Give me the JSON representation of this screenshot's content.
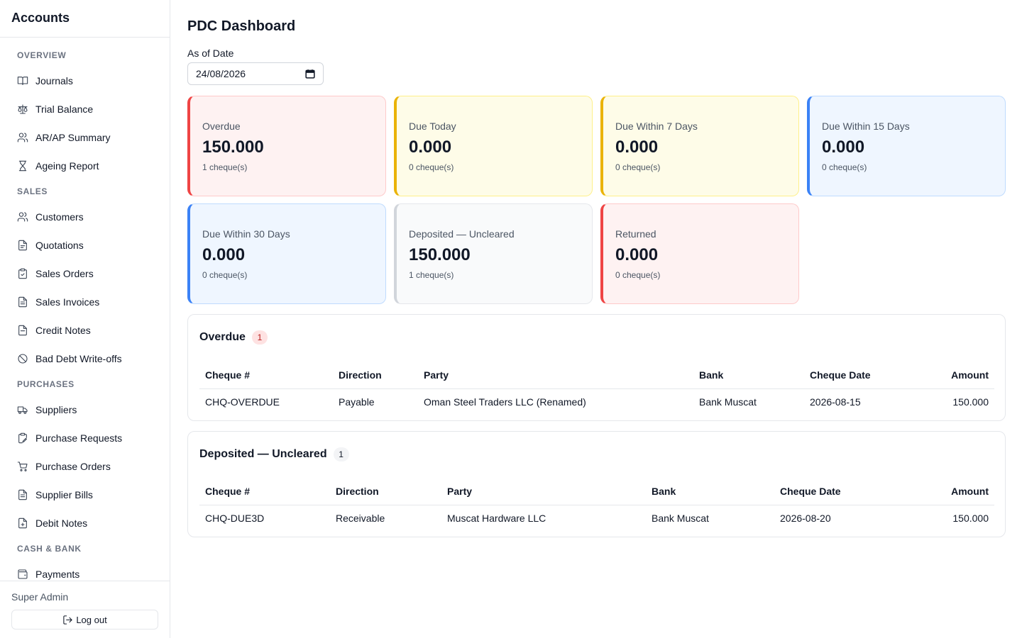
{
  "app": {
    "title": "Accounts"
  },
  "sidebar": {
    "sections": [
      {
        "label": "OVERVIEW",
        "items": [
          {
            "label": "Journals",
            "icon": "book-icon"
          },
          {
            "label": "Trial Balance",
            "icon": "scale-icon"
          },
          {
            "label": "AR/AP Summary",
            "icon": "users-icon"
          },
          {
            "label": "Ageing Report",
            "icon": "hourglass-icon"
          }
        ]
      },
      {
        "label": "SALES",
        "items": [
          {
            "label": "Customers",
            "icon": "users-icon"
          },
          {
            "label": "Quotations",
            "icon": "file-icon"
          },
          {
            "label": "Sales Orders",
            "icon": "clipboard-check-icon"
          },
          {
            "label": "Sales Invoices",
            "icon": "file-text-icon"
          },
          {
            "label": "Credit Notes",
            "icon": "file-text-icon"
          },
          {
            "label": "Bad Debt Write-offs",
            "icon": "ban-icon"
          }
        ]
      },
      {
        "label": "PURCHASES",
        "items": [
          {
            "label": "Suppliers",
            "icon": "truck-icon"
          },
          {
            "label": "Purchase Requests",
            "icon": "clipboard-pen-icon"
          },
          {
            "label": "Purchase Orders",
            "icon": "cart-icon"
          },
          {
            "label": "Supplier Bills",
            "icon": "file-text-icon"
          },
          {
            "label": "Debit Notes",
            "icon": "file-plus-icon"
          }
        ]
      },
      {
        "label": "CASH & BANK",
        "items": [
          {
            "label": "Payments",
            "icon": "wallet-icon"
          }
        ]
      }
    ],
    "user": "Super Admin",
    "logout_label": "Log out"
  },
  "page": {
    "title": "PDC Dashboard",
    "date_label": "As of Date",
    "date_value": "24/08/2026"
  },
  "cards": [
    {
      "label": "Overdue",
      "value": "150.000",
      "count": "1 cheque(s)",
      "tone": "red"
    },
    {
      "label": "Due Today",
      "value": "0.000",
      "count": "0 cheque(s)",
      "tone": "yellow"
    },
    {
      "label": "Due Within 7 Days",
      "value": "0.000",
      "count": "0 cheque(s)",
      "tone": "yellow"
    },
    {
      "label": "Due Within 15 Days",
      "value": "0.000",
      "count": "0 cheque(s)",
      "tone": "blue"
    },
    {
      "label": "Due Within 30 Days",
      "value": "0.000",
      "count": "0 cheque(s)",
      "tone": "blue"
    },
    {
      "label": "Deposited — Uncleared",
      "value": "150.000",
      "count": "1 cheque(s)",
      "tone": "gray"
    },
    {
      "label": "Returned",
      "value": "0.000",
      "count": "0 cheque(s)",
      "tone": "red"
    }
  ],
  "tables": [
    {
      "title": "Overdue",
      "badge": "1",
      "columns": [
        "Cheque #",
        "Direction",
        "Party",
        "Bank",
        "Cheque Date",
        "Amount"
      ],
      "rows": [
        [
          "CHQ-OVERDUE",
          "Payable",
          "Oman Steel Traders LLC (Renamed)",
          "Bank Muscat",
          "2026-08-15",
          "150.000"
        ]
      ]
    },
    {
      "title": "Deposited — Uncleared",
      "badge": "1",
      "columns": [
        "Cheque #",
        "Direction",
        "Party",
        "Bank",
        "Cheque Date",
        "Amount"
      ],
      "rows": [
        [
          "CHQ-DUE3D",
          "Receivable",
          "Muscat Hardware LLC",
          "Bank Muscat",
          "2026-08-20",
          "150.000"
        ]
      ]
    }
  ]
}
